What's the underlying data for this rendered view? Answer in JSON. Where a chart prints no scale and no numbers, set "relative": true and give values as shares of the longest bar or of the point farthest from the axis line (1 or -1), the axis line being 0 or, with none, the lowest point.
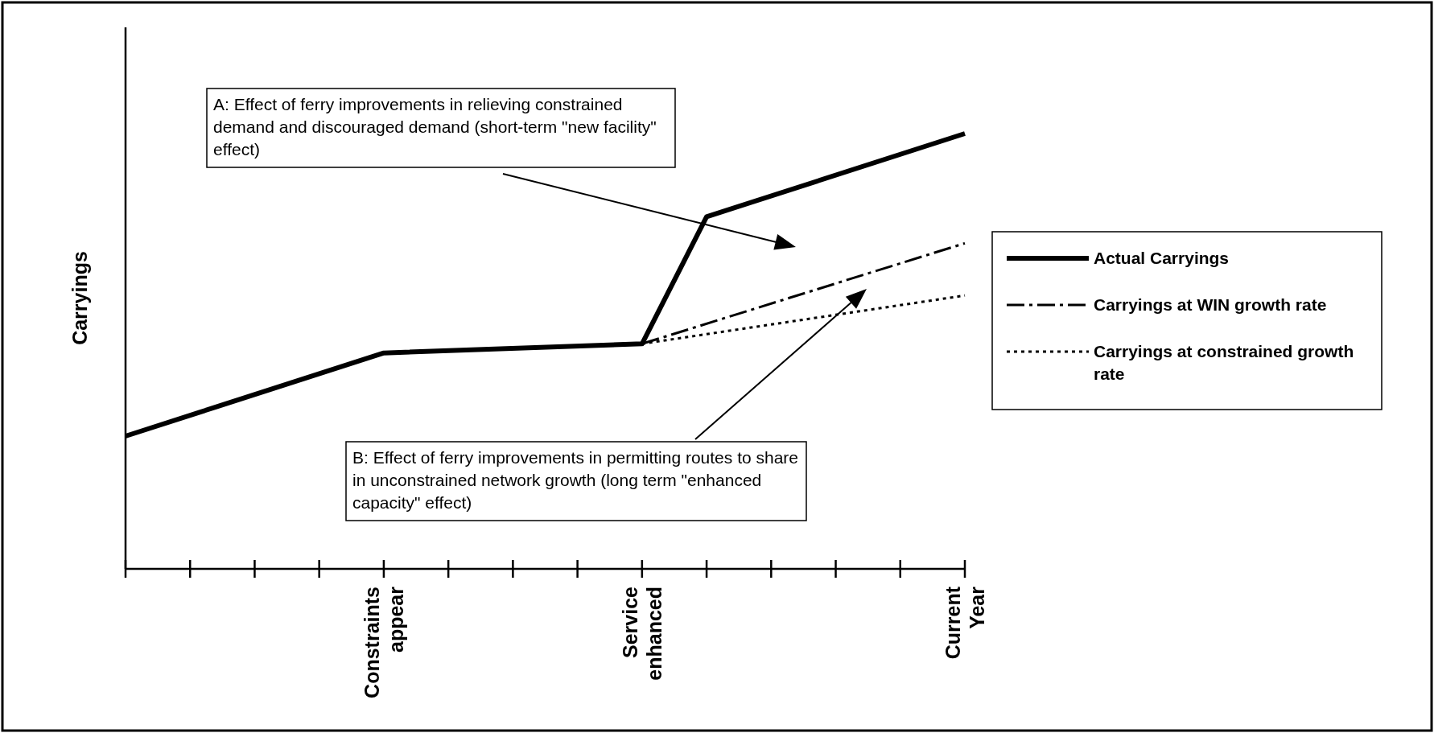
{
  "chart_data": {
    "type": "line",
    "relative": true,
    "ylabel": "Carryings",
    "categories": [
      null,
      null,
      null,
      null,
      "Constraints appear",
      null,
      null,
      null,
      "Service enhanced",
      null,
      null,
      null,
      null,
      "Current Year"
    ],
    "series": [
      {
        "name": "Actual Carryings",
        "color": "#000000",
        "line_style": "solid",
        "values": [
          0.305,
          null,
          null,
          null,
          0.496,
          null,
          null,
          null,
          0.517,
          0.809,
          null,
          null,
          null,
          1
        ]
      },
      {
        "name": "Carryings at WIN growth rate",
        "color": "#000000",
        "line_style": "dashed",
        "values": [
          null,
          null,
          null,
          null,
          null,
          null,
          null,
          null,
          0.517,
          null,
          null,
          null,
          null,
          0.748
        ]
      },
      {
        "name": "Carryings at constrained growth rate",
        "color": "#000000",
        "line_style": "dotted",
        "values": [
          null,
          null,
          null,
          null,
          null,
          null,
          null,
          null,
          0.517,
          null,
          null,
          null,
          null,
          0.628
        ]
      }
    ],
    "legend": "right",
    "marker": "none",
    "annotations": [
      "A: Effect of ferry improvements in relieving constrained demand and discouraged demand (short-term \"new facility\" effect)",
      "B: Effect of ferry improvements in permitting routes to share in unconstrained network growth (long term \"enhanced capacity\" effect)"
    ]
  }
}
